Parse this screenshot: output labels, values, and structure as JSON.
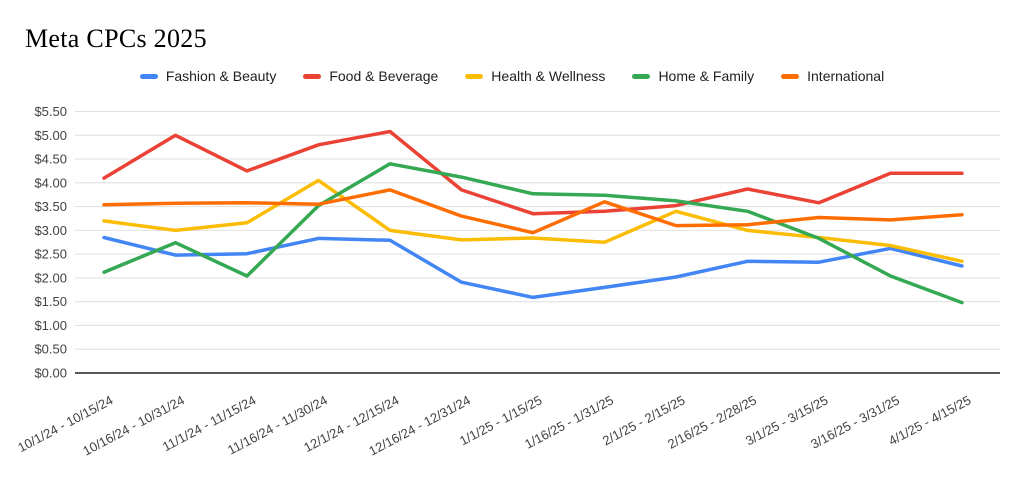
{
  "chart_data": {
    "type": "line",
    "title": "Meta CPCs 2025",
    "xlabel": "",
    "ylabel": "",
    "ylim": [
      0,
      5.5
    ],
    "grid": "horizontal",
    "legend_position": "top-center",
    "currency_format": "$#.00",
    "categories": [
      "10/1/24 - 10/15/24",
      "10/16/24 - 10/31/24",
      "11/1/24 - 11/15/24",
      "11/16/24 - 11/30/24",
      "12/1/24 - 12/15/24",
      "12/16/24 - 12/31/24",
      "1/1/25 - 1/15/25",
      "1/16/25 - 1/31/25",
      "2/1/25 - 2/15/25",
      "2/16/25 - 2/28/25",
      "3/1/25 - 3/15/25",
      "3/16/25 - 3/31/25",
      "4/1/25 - 4/15/25"
    ],
    "series": [
      {
        "name": "Fashion & Beauty",
        "slug": "fashion-beauty",
        "color": "#4285F4",
        "values": [
          2.85,
          2.48,
          2.51,
          2.83,
          2.79,
          1.91,
          1.59,
          1.8,
          2.02,
          2.35,
          2.33,
          2.62,
          2.25
        ]
      },
      {
        "name": "Food & Beverage",
        "slug": "food-beverage",
        "color": "#EA4335",
        "values": [
          4.1,
          5.0,
          4.25,
          4.8,
          5.08,
          3.85,
          3.35,
          3.4,
          3.52,
          3.87,
          3.58,
          4.2,
          4.2
        ]
      },
      {
        "name": "Health & Wellness",
        "slug": "health-wellness",
        "color": "#FBBC04",
        "values": [
          3.2,
          3.0,
          3.16,
          4.05,
          3.0,
          2.8,
          2.84,
          2.75,
          3.4,
          3.0,
          2.85,
          2.68,
          2.35
        ]
      },
      {
        "name": "Home & Family",
        "slug": "home-family",
        "color": "#34A853",
        "values": [
          2.12,
          2.74,
          2.04,
          3.52,
          4.4,
          4.12,
          3.77,
          3.74,
          3.62,
          3.4,
          2.83,
          2.04,
          1.48
        ]
      },
      {
        "name": "International",
        "slug": "international",
        "color": "#FF6D01",
        "values": [
          3.54,
          3.57,
          3.58,
          3.55,
          3.85,
          3.3,
          2.95,
          3.6,
          3.1,
          3.12,
          3.27,
          3.22,
          3.33
        ]
      }
    ],
    "y_ticks": [
      {
        "value": 0.0,
        "label": "$0.00"
      },
      {
        "value": 0.5,
        "label": "$0.50"
      },
      {
        "value": 1.0,
        "label": "$1.00"
      },
      {
        "value": 1.5,
        "label": "$1.50"
      },
      {
        "value": 2.0,
        "label": "$2.00"
      },
      {
        "value": 2.5,
        "label": "$2.50"
      },
      {
        "value": 3.0,
        "label": "$3.00"
      },
      {
        "value": 3.5,
        "label": "$3.50"
      },
      {
        "value": 4.0,
        "label": "$4.00"
      },
      {
        "value": 4.5,
        "label": "$4.50"
      },
      {
        "value": 5.0,
        "label": "$5.00"
      },
      {
        "value": 5.5,
        "label": "$5.50"
      }
    ]
  }
}
